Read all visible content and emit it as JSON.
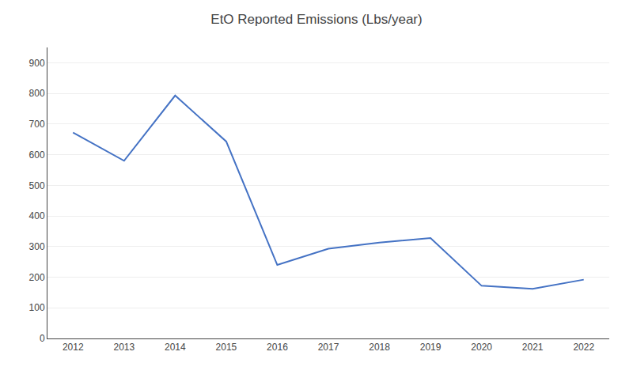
{
  "chart_data": {
    "type": "line",
    "title": "EtO Reported Emissions (Lbs/year)",
    "x": [
      2012,
      2013,
      2014,
      2015,
      2016,
      2017,
      2018,
      2019,
      2020,
      2021,
      2022
    ],
    "values": [
      672,
      580,
      793,
      643,
      240,
      293,
      313,
      328,
      172,
      162,
      192
    ],
    "color": "#4472C4",
    "xlim": [
      2011.5,
      2022.5
    ],
    "xticks": [
      2012,
      2013,
      2014,
      2015,
      2016,
      2017,
      2018,
      2019,
      2020,
      2021,
      2022
    ],
    "ylim": [
      0,
      950
    ],
    "yticks": [
      0,
      100,
      200,
      300,
      400,
      500,
      600,
      700,
      800,
      900
    ],
    "grid": "y"
  }
}
